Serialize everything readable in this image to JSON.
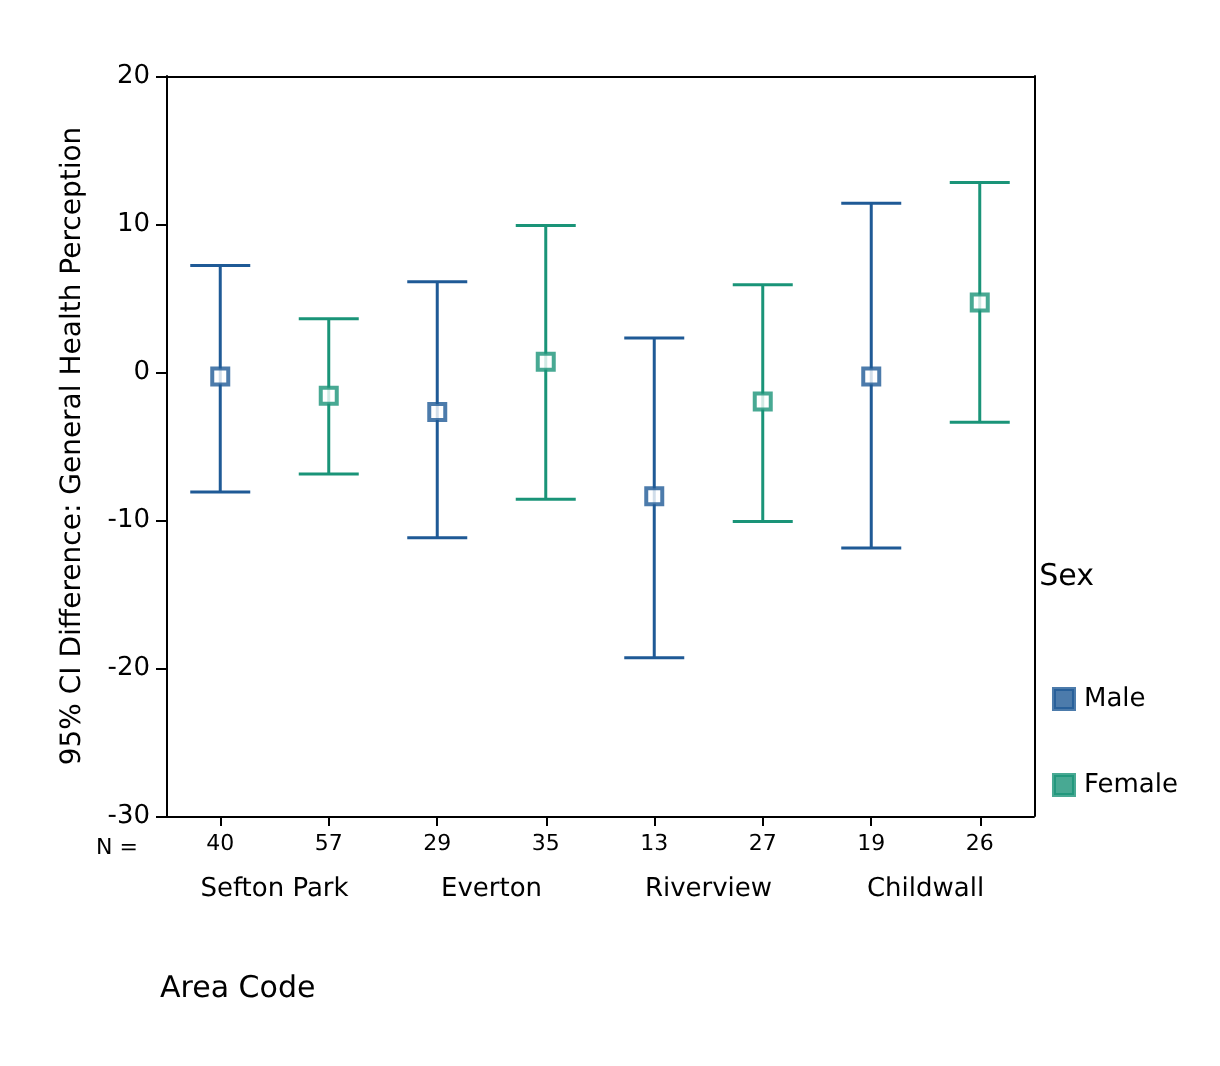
{
  "chart_data": {
    "type": "scatter",
    "xlabel": "Area Code",
    "ylabel": "95% CI Difference: General Health Perception",
    "legend_title": "Sex",
    "categories": [
      "Sefton Park",
      "Everton",
      "Riverview",
      "Childwall"
    ],
    "series": [
      {
        "name": "Male",
        "color": "#1f5a96",
        "values": [
          -0.3,
          -2.7,
          -8.4,
          -0.3
        ],
        "errors": [
          [
            -8.1,
            7.2
          ],
          [
            -11.2,
            6.1
          ],
          [
            -19.3,
            2.3
          ],
          [
            -11.9,
            11.4
          ]
        ]
      },
      {
        "name": "Female",
        "color": "#1a9478",
        "values": [
          -1.6,
          0.7,
          -2.0,
          4.7
        ],
        "errors": [
          [
            -6.9,
            3.6
          ],
          [
            -8.6,
            9.9
          ],
          [
            -10.1,
            5.9
          ],
          [
            -3.4,
            12.8
          ]
        ]
      }
    ],
    "annotations": [
      "N =",
      "40",
      "57",
      "29",
      "35",
      "13",
      "27",
      "19",
      "26"
    ],
    "ylim": [
      -30,
      20
    ],
    "yticks": [
      -30,
      -20,
      -10,
      0,
      10,
      20
    ],
    "legend": "right",
    "marker": "square"
  }
}
